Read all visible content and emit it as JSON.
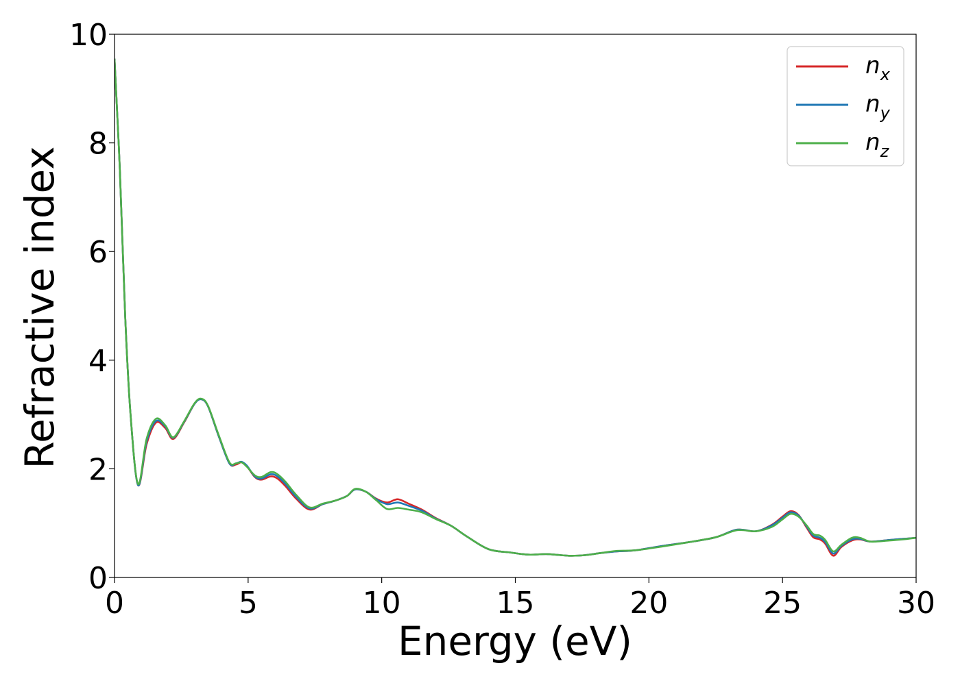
{
  "chart_data": {
    "type": "line",
    "title": "",
    "xlabel": "Energy (eV)",
    "ylabel": "Refractive index",
    "xlim": [
      0,
      30
    ],
    "ylim": [
      0,
      10
    ],
    "xticks": [
      0,
      5,
      10,
      15,
      20,
      25,
      30
    ],
    "yticks": [
      0,
      2,
      4,
      6,
      8,
      10
    ],
    "grid": false,
    "legend_position": "top-right",
    "series": [
      {
        "name": "n_x",
        "legend_main": "n",
        "legend_sub": "x",
        "color": "#d62728",
        "x": [
          0,
          0.2,
          0.4,
          0.6,
          0.88,
          1.2,
          1.55,
          1.9,
          2.2,
          2.6,
          3.0,
          3.25,
          3.5,
          3.9,
          4.3,
          4.55,
          4.75,
          4.95,
          5.25,
          5.5,
          5.85,
          6.1,
          6.4,
          6.8,
          7.3,
          7.8,
          8.3,
          8.7,
          9.0,
          9.4,
          9.8,
          10.2,
          10.6,
          11.0,
          11.5,
          12.0,
          12.6,
          13.2,
          14.0,
          14.8,
          15.5,
          16.2,
          17.0,
          17.6,
          18.2,
          18.8,
          19.5,
          20.5,
          21.5,
          22.5,
          23.3,
          24.0,
          24.6,
          25.0,
          25.3,
          25.6,
          25.9,
          26.15,
          26.4,
          26.6,
          26.9,
          27.2,
          27.6,
          27.9,
          28.3,
          29.0,
          29.5,
          30.0
        ],
        "y": [
          9.55,
          7.5,
          4.8,
          3.0,
          1.7,
          2.45,
          2.85,
          2.75,
          2.55,
          2.85,
          3.2,
          3.28,
          3.15,
          2.6,
          2.1,
          2.08,
          2.12,
          2.05,
          1.85,
          1.8,
          1.86,
          1.82,
          1.68,
          1.45,
          1.25,
          1.35,
          1.42,
          1.5,
          1.62,
          1.58,
          1.45,
          1.38,
          1.44,
          1.36,
          1.25,
          1.1,
          0.95,
          0.75,
          0.52,
          0.46,
          0.42,
          0.43,
          0.4,
          0.41,
          0.45,
          0.48,
          0.5,
          0.58,
          0.65,
          0.74,
          0.88,
          0.85,
          0.97,
          1.12,
          1.22,
          1.15,
          0.92,
          0.74,
          0.7,
          0.62,
          0.4,
          0.56,
          0.68,
          0.7,
          0.66,
          0.69,
          0.71,
          0.73
        ]
      },
      {
        "name": "n_y",
        "legend_main": "n",
        "legend_sub": "y",
        "color": "#1f77b4",
        "x": [
          0,
          0.2,
          0.4,
          0.6,
          0.88,
          1.2,
          1.55,
          1.9,
          2.2,
          2.6,
          3.0,
          3.25,
          3.5,
          3.9,
          4.3,
          4.55,
          4.75,
          4.95,
          5.25,
          5.5,
          5.85,
          6.1,
          6.4,
          6.8,
          7.3,
          7.8,
          8.3,
          8.7,
          9.0,
          9.4,
          9.8,
          10.2,
          10.6,
          11.0,
          11.5,
          12.0,
          12.6,
          13.2,
          14.0,
          14.8,
          15.5,
          16.2,
          17.0,
          17.6,
          18.2,
          18.8,
          19.5,
          20.5,
          21.5,
          22.5,
          23.3,
          24.0,
          24.6,
          25.0,
          25.3,
          25.6,
          25.9,
          26.15,
          26.4,
          26.6,
          26.9,
          27.2,
          27.6,
          27.9,
          28.3,
          29.0,
          29.5,
          30.0
        ],
        "y": [
          9.55,
          7.5,
          4.8,
          3.0,
          1.7,
          2.5,
          2.88,
          2.78,
          2.57,
          2.86,
          3.2,
          3.28,
          3.15,
          2.6,
          2.1,
          2.1,
          2.13,
          2.06,
          1.86,
          1.82,
          1.9,
          1.86,
          1.72,
          1.48,
          1.27,
          1.35,
          1.42,
          1.5,
          1.62,
          1.58,
          1.44,
          1.35,
          1.38,
          1.32,
          1.23,
          1.09,
          0.95,
          0.75,
          0.52,
          0.46,
          0.42,
          0.43,
          0.4,
          0.41,
          0.45,
          0.48,
          0.5,
          0.58,
          0.65,
          0.74,
          0.88,
          0.85,
          0.96,
          1.1,
          1.2,
          1.14,
          0.94,
          0.77,
          0.73,
          0.65,
          0.44,
          0.58,
          0.7,
          0.71,
          0.66,
          0.69,
          0.71,
          0.73
        ]
      },
      {
        "name": "n_z",
        "legend_main": "n",
        "legend_sub": "z",
        "color": "#4daf4a",
        "x": [
          0,
          0.2,
          0.4,
          0.6,
          0.88,
          1.2,
          1.55,
          1.9,
          2.2,
          2.6,
          3.0,
          3.25,
          3.5,
          3.9,
          4.3,
          4.55,
          4.75,
          4.95,
          5.25,
          5.5,
          5.85,
          6.1,
          6.4,
          6.8,
          7.3,
          7.8,
          8.3,
          8.7,
          9.0,
          9.4,
          9.8,
          10.2,
          10.6,
          11.0,
          11.5,
          12.0,
          12.6,
          13.2,
          14.0,
          14.8,
          15.5,
          16.2,
          17.0,
          17.6,
          18.2,
          18.8,
          19.5,
          20.5,
          21.5,
          22.5,
          23.3,
          24.0,
          24.6,
          25.0,
          25.3,
          25.6,
          25.9,
          26.15,
          26.4,
          26.6,
          26.9,
          27.2,
          27.6,
          27.9,
          28.3,
          29.0,
          29.5,
          30.0
        ],
        "y": [
          9.55,
          7.5,
          4.8,
          3.0,
          1.72,
          2.55,
          2.92,
          2.8,
          2.58,
          2.87,
          3.21,
          3.29,
          3.16,
          2.62,
          2.12,
          2.1,
          2.12,
          2.04,
          1.88,
          1.85,
          1.94,
          1.9,
          1.76,
          1.52,
          1.29,
          1.36,
          1.42,
          1.5,
          1.63,
          1.58,
          1.42,
          1.26,
          1.28,
          1.25,
          1.2,
          1.08,
          0.95,
          0.75,
          0.52,
          0.46,
          0.42,
          0.43,
          0.4,
          0.41,
          0.45,
          0.49,
          0.5,
          0.57,
          0.65,
          0.74,
          0.87,
          0.85,
          0.93,
          1.07,
          1.17,
          1.12,
          0.96,
          0.8,
          0.77,
          0.69,
          0.48,
          0.6,
          0.73,
          0.73,
          0.66,
          0.68,
          0.7,
          0.73
        ]
      }
    ]
  }
}
